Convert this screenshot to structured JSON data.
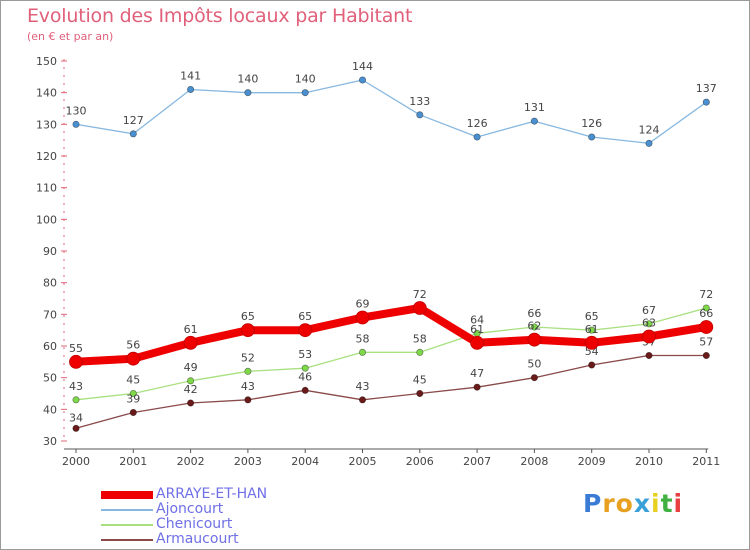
{
  "chart_data": {
    "type": "line",
    "title": "Evolution des Impôts locaux par Habitant",
    "subtitle": "(en € et par an)",
    "xlabel": "",
    "ylabel": "",
    "ylim": [
      30,
      150
    ],
    "y_ticks": [
      "30",
      "40",
      "50",
      "60",
      "70",
      "80",
      "90",
      "100",
      "110",
      "120",
      "130",
      "140",
      "150"
    ],
    "categories": [
      "2000",
      "2001",
      "2002",
      "2003",
      "2004",
      "2005",
      "2006",
      "2007",
      "2008",
      "2009",
      "2010",
      "2011"
    ],
    "series": [
      {
        "name": "ARRAYE-ET-HAN",
        "color": "#ee0000",
        "emphasis": true,
        "values": [
          55,
          56,
          61,
          65,
          65,
          69,
          72,
          61,
          62,
          61,
          63,
          66
        ],
        "labels": [
          "55",
          "56",
          "61",
          "65",
          "65",
          "69",
          "72",
          "61",
          "62",
          "61",
          "63",
          "66"
        ]
      },
      {
        "name": "Ajoncourt",
        "color": "#4a90d0",
        "line_color": "#88b8e0",
        "values": [
          130,
          127,
          141,
          140,
          140,
          144,
          133,
          126,
          131,
          126,
          124,
          137
        ],
        "labels": [
          "130",
          "127",
          "141",
          "140",
          "140",
          "144",
          "133",
          "126",
          "131",
          "126",
          "124",
          "137"
        ]
      },
      {
        "name": "Chenicourt",
        "color": "#7ed84a",
        "line_color": "#a8e080",
        "values": [
          43,
          45,
          49,
          52,
          53,
          58,
          58,
          64,
          66,
          65,
          67,
          72
        ],
        "labels": [
          "43",
          "45",
          "49",
          "52",
          "53",
          "58",
          "58",
          "64",
          "66",
          "65",
          "67",
          "72"
        ]
      },
      {
        "name": "Armaucourt",
        "color": "#6b1a1a",
        "line_color": "#8a4a4a",
        "values": [
          34,
          39,
          42,
          43,
          46,
          43,
          45,
          47,
          50,
          54,
          57,
          57
        ],
        "labels": [
          "34",
          "39",
          "42",
          "43",
          "46",
          "43",
          "45",
          "47",
          "50",
          "54",
          "57",
          "57"
        ]
      }
    ],
    "legend": "bottom-left"
  },
  "brand": {
    "letters": [
      "P",
      "r",
      "o",
      "x",
      "i",
      "t",
      "i"
    ],
    "colors": [
      "#3a7bd5",
      "#e8a020",
      "#e8a020",
      "#3aa0d8",
      "#e8d020",
      "#40b040",
      "#e84040"
    ]
  }
}
